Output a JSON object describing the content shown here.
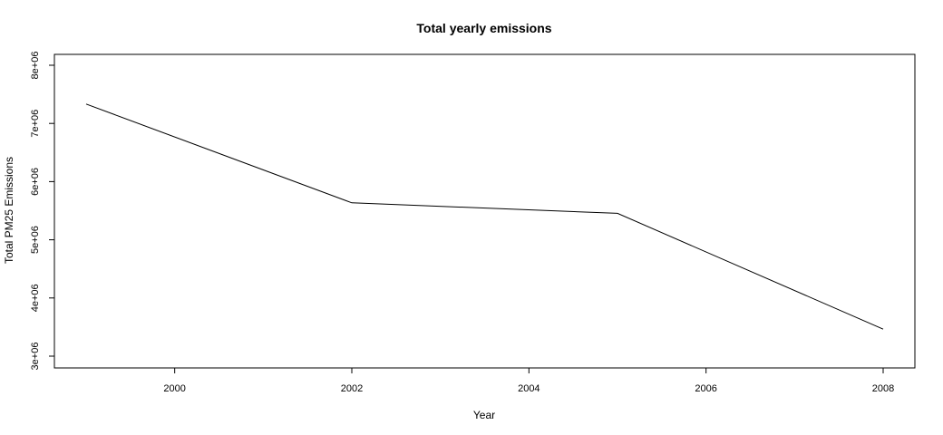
{
  "chart_data": {
    "type": "line",
    "title": "Total yearly emissions",
    "xlabel": "Year",
    "ylabel": "Total PM25 Emissions",
    "x": [
      1999,
      2002,
      2005,
      2008
    ],
    "series": [
      {
        "values": [
          7332967,
          5635780,
          5454703,
          3464206
        ],
        "color": "#000000"
      }
    ],
    "xlim": [
      1999,
      2008
    ],
    "ylim": [
      3000000,
      8000000
    ],
    "x_ticks": [
      2000,
      2002,
      2004,
      2006,
      2008
    ],
    "x_tick_labels": [
      "2000",
      "2002",
      "2004",
      "2006",
      "2008"
    ],
    "y_ticks": [
      3000000,
      4000000,
      5000000,
      6000000,
      7000000,
      8000000
    ],
    "y_tick_labels": [
      "3e+06",
      "4e+06",
      "5e+06",
      "6e+06",
      "7e+06",
      "8e+06"
    ],
    "grid": false,
    "legend": "none"
  }
}
